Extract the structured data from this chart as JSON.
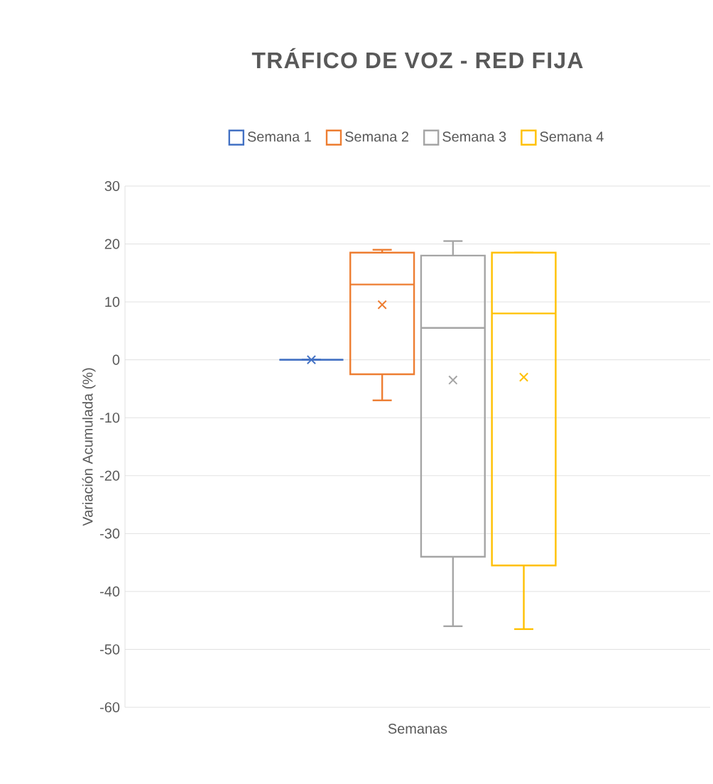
{
  "chart_data": {
    "type": "box",
    "title": "TRÁFICO DE VOZ - RED FIJA",
    "xlabel": "Semanas",
    "ylabel": "Variación Acumulada (%)",
    "categories": [
      null
    ],
    "series": [
      {
        "name": "Semana 1",
        "color": "#4472c4",
        "boxes": [
          {
            "low": 0,
            "q1": 0,
            "median": 0,
            "q3": 0,
            "high": 0,
            "mean": 0
          }
        ]
      },
      {
        "name": "Semana 2",
        "color": "#ed7d31",
        "boxes": [
          {
            "low": -7,
            "q1": -2.5,
            "median": 13,
            "q3": 18.5,
            "high": 19,
            "mean": 9.5
          }
        ]
      },
      {
        "name": "Semana 3",
        "color": "#a5a5a5",
        "boxes": [
          {
            "low": -46,
            "q1": -34,
            "median": 5.5,
            "q3": 18,
            "high": 20.5,
            "mean": -3.5
          }
        ]
      },
      {
        "name": "Semana 4",
        "color": "#ffc000",
        "boxes": [
          {
            "low": -46.5,
            "q1": -35.5,
            "median": 8,
            "q3": 18.5,
            "high": 18.5,
            "mean": -3
          }
        ]
      }
    ],
    "ylim": [
      -60,
      30
    ],
    "yticks": [
      -60,
      -50,
      -40,
      -30,
      -20,
      -10,
      0,
      10,
      20,
      30
    ],
    "grid": "y",
    "legend": "top",
    "marker": "cross"
  }
}
